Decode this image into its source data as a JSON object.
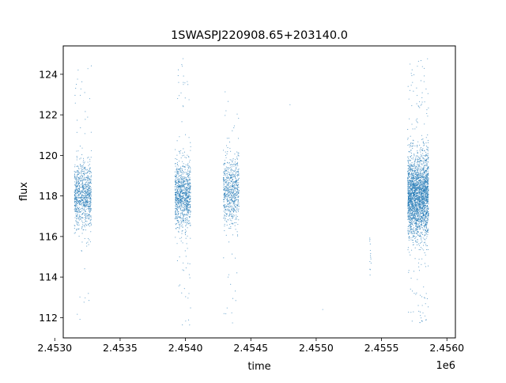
{
  "chart_data": {
    "type": "scatter",
    "title": "1SWASPJ220908.65+203140.0",
    "xlabel": "time",
    "ylabel": "flux",
    "x_offset_label": "1e6",
    "xlim": [
      2.453065,
      2.456065
    ],
    "ylim": [
      111.0,
      125.4
    ],
    "x_ticks": [
      2.453,
      2.4535,
      2.454,
      2.4545,
      2.455,
      2.4555,
      2.456
    ],
    "x_tick_labels": [
      "2.4530",
      "2.4535",
      "2.4540",
      "2.4545",
      "2.4550",
      "2.4555",
      "2.4560"
    ],
    "y_ticks": [
      112,
      114,
      116,
      118,
      120,
      122,
      124
    ],
    "y_tick_labels": [
      "112",
      "114",
      "116",
      "118",
      "120",
      "122",
      "124"
    ],
    "grid": false,
    "legend": "none",
    "point_color": "#1f77b4",
    "series": [
      {
        "clusters": [
          {
            "x_range": [
              2.45315,
              2.45328
            ],
            "center": 118.0,
            "spread": 0.8,
            "tail_min": 111.7,
            "tail_max": 124.6,
            "count": 900
          },
          {
            "x_range": [
              2.45392,
              2.45404
            ],
            "center": 118.0,
            "spread": 0.8,
            "tail_min": 111.6,
            "tail_max": 124.8,
            "count": 1000
          },
          {
            "x_range": [
              2.45429,
              2.45441
            ],
            "center": 118.2,
            "spread": 0.8,
            "tail_min": 111.6,
            "tail_max": 123.4,
            "count": 700
          },
          {
            "x_range": [
              2.45541,
              2.45542
            ],
            "center": 115.3,
            "spread": 0.7,
            "tail_min": 114.1,
            "tail_max": 116.5,
            "count": 14
          },
          {
            "x_range": [
              2.4557,
              2.45586
            ],
            "center": 118.0,
            "spread": 1.0,
            "tail_min": 111.6,
            "tail_max": 124.8,
            "count": 2600
          }
        ],
        "isolated_points": [
          {
            "x": 2.4548,
            "y": 122.5
          },
          {
            "x": 2.45505,
            "y": 112.4
          }
        ]
      }
    ]
  }
}
